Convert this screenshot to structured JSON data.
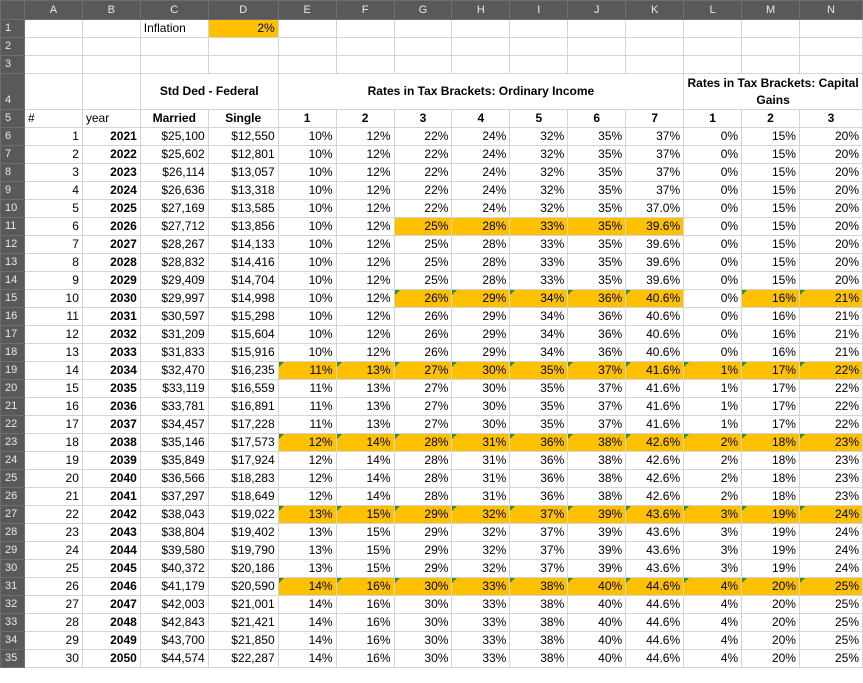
{
  "sheet": {
    "columns": [
      "A",
      "B",
      "C",
      "D",
      "E",
      "F",
      "G",
      "H",
      "I",
      "J",
      "K",
      "L",
      "M",
      "N"
    ],
    "inflation_label": "Inflation",
    "inflation_value": "2%",
    "headers": {
      "std_ded": "Std Ded - Federal",
      "ordinary": "Rates in Tax Brackets: Ordinary Income",
      "capital": "Rates in Tax Brackets: Capital Gains",
      "hash": "#",
      "year": "year",
      "married": "Married",
      "single": "Single",
      "ord_brackets": [
        "1",
        "2",
        "3",
        "4",
        "5",
        "6",
        "7"
      ],
      "cap_brackets": [
        "1",
        "2",
        "3"
      ]
    },
    "rows": [
      {
        "n": "1",
        "year": "2021",
        "married": "$25,100",
        "single": "$12,550",
        "ord": [
          "10%",
          "12%",
          "22%",
          "24%",
          "32%",
          "35%",
          "37%"
        ],
        "cap": [
          "0%",
          "15%",
          "20%"
        ]
      },
      {
        "n": "2",
        "year": "2022",
        "married": "$25,602",
        "single": "$12,801",
        "ord": [
          "10%",
          "12%",
          "22%",
          "24%",
          "32%",
          "35%",
          "37%"
        ],
        "cap": [
          "0%",
          "15%",
          "20%"
        ]
      },
      {
        "n": "3",
        "year": "2023",
        "married": "$26,114",
        "single": "$13,057",
        "ord": [
          "10%",
          "12%",
          "22%",
          "24%",
          "32%",
          "35%",
          "37%"
        ],
        "cap": [
          "0%",
          "15%",
          "20%"
        ]
      },
      {
        "n": "4",
        "year": "2024",
        "married": "$26,636",
        "single": "$13,318",
        "ord": [
          "10%",
          "12%",
          "22%",
          "24%",
          "32%",
          "35%",
          "37%"
        ],
        "cap": [
          "0%",
          "15%",
          "20%"
        ]
      },
      {
        "n": "5",
        "year": "2025",
        "married": "$27,169",
        "single": "$13,585",
        "ord": [
          "10%",
          "12%",
          "22%",
          "24%",
          "32%",
          "35%",
          "37.0%"
        ],
        "cap": [
          "0%",
          "15%",
          "20%"
        ]
      },
      {
        "n": "6",
        "year": "2026",
        "married": "$27,712",
        "single": "$13,856",
        "ord": [
          "10%",
          "12%",
          "25%",
          "28%",
          "33%",
          "35%",
          "39.6%"
        ],
        "cap": [
          "0%",
          "15%",
          "20%"
        ]
      },
      {
        "n": "7",
        "year": "2027",
        "married": "$28,267",
        "single": "$14,133",
        "ord": [
          "10%",
          "12%",
          "25%",
          "28%",
          "33%",
          "35%",
          "39.6%"
        ],
        "cap": [
          "0%",
          "15%",
          "20%"
        ]
      },
      {
        "n": "8",
        "year": "2028",
        "married": "$28,832",
        "single": "$14,416",
        "ord": [
          "10%",
          "12%",
          "25%",
          "28%",
          "33%",
          "35%",
          "39.6%"
        ],
        "cap": [
          "0%",
          "15%",
          "20%"
        ]
      },
      {
        "n": "9",
        "year": "2029",
        "married": "$29,409",
        "single": "$14,704",
        "ord": [
          "10%",
          "12%",
          "25%",
          "28%",
          "33%",
          "35%",
          "39.6%"
        ],
        "cap": [
          "0%",
          "15%",
          "20%"
        ]
      },
      {
        "n": "10",
        "year": "2030",
        "married": "$29,997",
        "single": "$14,998",
        "ord": [
          "10%",
          "12%",
          "26%",
          "29%",
          "34%",
          "36%",
          "40.6%"
        ],
        "cap": [
          "0%",
          "16%",
          "21%"
        ]
      },
      {
        "n": "11",
        "year": "2031",
        "married": "$30,597",
        "single": "$15,298",
        "ord": [
          "10%",
          "12%",
          "26%",
          "29%",
          "34%",
          "36%",
          "40.6%"
        ],
        "cap": [
          "0%",
          "16%",
          "21%"
        ]
      },
      {
        "n": "12",
        "year": "2032",
        "married": "$31,209",
        "single": "$15,604",
        "ord": [
          "10%",
          "12%",
          "26%",
          "29%",
          "34%",
          "36%",
          "40.6%"
        ],
        "cap": [
          "0%",
          "16%",
          "21%"
        ]
      },
      {
        "n": "13",
        "year": "2033",
        "married": "$31,833",
        "single": "$15,916",
        "ord": [
          "10%",
          "12%",
          "26%",
          "29%",
          "34%",
          "36%",
          "40.6%"
        ],
        "cap": [
          "0%",
          "16%",
          "21%"
        ]
      },
      {
        "n": "14",
        "year": "2034",
        "married": "$32,470",
        "single": "$16,235",
        "ord": [
          "11%",
          "13%",
          "27%",
          "30%",
          "35%",
          "37%",
          "41.6%"
        ],
        "cap": [
          "1%",
          "17%",
          "22%"
        ]
      },
      {
        "n": "15",
        "year": "2035",
        "married": "$33,119",
        "single": "$16,559",
        "ord": [
          "11%",
          "13%",
          "27%",
          "30%",
          "35%",
          "37%",
          "41.6%"
        ],
        "cap": [
          "1%",
          "17%",
          "22%"
        ]
      },
      {
        "n": "16",
        "year": "2036",
        "married": "$33,781",
        "single": "$16,891",
        "ord": [
          "11%",
          "13%",
          "27%",
          "30%",
          "35%",
          "37%",
          "41.6%"
        ],
        "cap": [
          "1%",
          "17%",
          "22%"
        ]
      },
      {
        "n": "17",
        "year": "2037",
        "married": "$34,457",
        "single": "$17,228",
        "ord": [
          "11%",
          "13%",
          "27%",
          "30%",
          "35%",
          "37%",
          "41.6%"
        ],
        "cap": [
          "1%",
          "17%",
          "22%"
        ]
      },
      {
        "n": "18",
        "year": "2038",
        "married": "$35,146",
        "single": "$17,573",
        "ord": [
          "12%",
          "14%",
          "28%",
          "31%",
          "36%",
          "38%",
          "42.6%"
        ],
        "cap": [
          "2%",
          "18%",
          "23%"
        ]
      },
      {
        "n": "19",
        "year": "2039",
        "married": "$35,849",
        "single": "$17,924",
        "ord": [
          "12%",
          "14%",
          "28%",
          "31%",
          "36%",
          "38%",
          "42.6%"
        ],
        "cap": [
          "2%",
          "18%",
          "23%"
        ]
      },
      {
        "n": "20",
        "year": "2040",
        "married": "$36,566",
        "single": "$18,283",
        "ord": [
          "12%",
          "14%",
          "28%",
          "31%",
          "36%",
          "38%",
          "42.6%"
        ],
        "cap": [
          "2%",
          "18%",
          "23%"
        ]
      },
      {
        "n": "21",
        "year": "2041",
        "married": "$37,297",
        "single": "$18,649",
        "ord": [
          "12%",
          "14%",
          "28%",
          "31%",
          "36%",
          "38%",
          "42.6%"
        ],
        "cap": [
          "2%",
          "18%",
          "23%"
        ]
      },
      {
        "n": "22",
        "year": "2042",
        "married": "$38,043",
        "single": "$19,022",
        "ord": [
          "13%",
          "15%",
          "29%",
          "32%",
          "37%",
          "39%",
          "43.6%"
        ],
        "cap": [
          "3%",
          "19%",
          "24%"
        ]
      },
      {
        "n": "23",
        "year": "2043",
        "married": "$38,804",
        "single": "$19,402",
        "ord": [
          "13%",
          "15%",
          "29%",
          "32%",
          "37%",
          "39%",
          "43.6%"
        ],
        "cap": [
          "3%",
          "19%",
          "24%"
        ]
      },
      {
        "n": "24",
        "year": "2044",
        "married": "$39,580",
        "single": "$19,790",
        "ord": [
          "13%",
          "15%",
          "29%",
          "32%",
          "37%",
          "39%",
          "43.6%"
        ],
        "cap": [
          "3%",
          "19%",
          "24%"
        ]
      },
      {
        "n": "25",
        "year": "2045",
        "married": "$40,372",
        "single": "$20,186",
        "ord": [
          "13%",
          "15%",
          "29%",
          "32%",
          "37%",
          "39%",
          "43.6%"
        ],
        "cap": [
          "3%",
          "19%",
          "24%"
        ]
      },
      {
        "n": "26",
        "year": "2046",
        "married": "$41,179",
        "single": "$20,590",
        "ord": [
          "14%",
          "16%",
          "30%",
          "33%",
          "38%",
          "40%",
          "44.6%"
        ],
        "cap": [
          "4%",
          "20%",
          "25%"
        ]
      },
      {
        "n": "27",
        "year": "2047",
        "married": "$42,003",
        "single": "$21,001",
        "ord": [
          "14%",
          "16%",
          "30%",
          "33%",
          "38%",
          "40%",
          "44.6%"
        ],
        "cap": [
          "4%",
          "20%",
          "25%"
        ]
      },
      {
        "n": "28",
        "year": "2048",
        "married": "$42,843",
        "single": "$21,421",
        "ord": [
          "14%",
          "16%",
          "30%",
          "33%",
          "38%",
          "40%",
          "44.6%"
        ],
        "cap": [
          "4%",
          "20%",
          "25%"
        ]
      },
      {
        "n": "29",
        "year": "2049",
        "married": "$43,700",
        "single": "$21,850",
        "ord": [
          "14%",
          "16%",
          "30%",
          "33%",
          "38%",
          "40%",
          "44.6%"
        ],
        "cap": [
          "4%",
          "20%",
          "25%"
        ]
      },
      {
        "n": "30",
        "year": "2050",
        "married": "$44,574",
        "single": "$22,287",
        "ord": [
          "14%",
          "16%",
          "30%",
          "33%",
          "38%",
          "40%",
          "44.6%"
        ],
        "cap": [
          "4%",
          "20%",
          "25%"
        ]
      }
    ],
    "highlight_color": "#ffc000",
    "header_bg_color": "#595959"
  }
}
